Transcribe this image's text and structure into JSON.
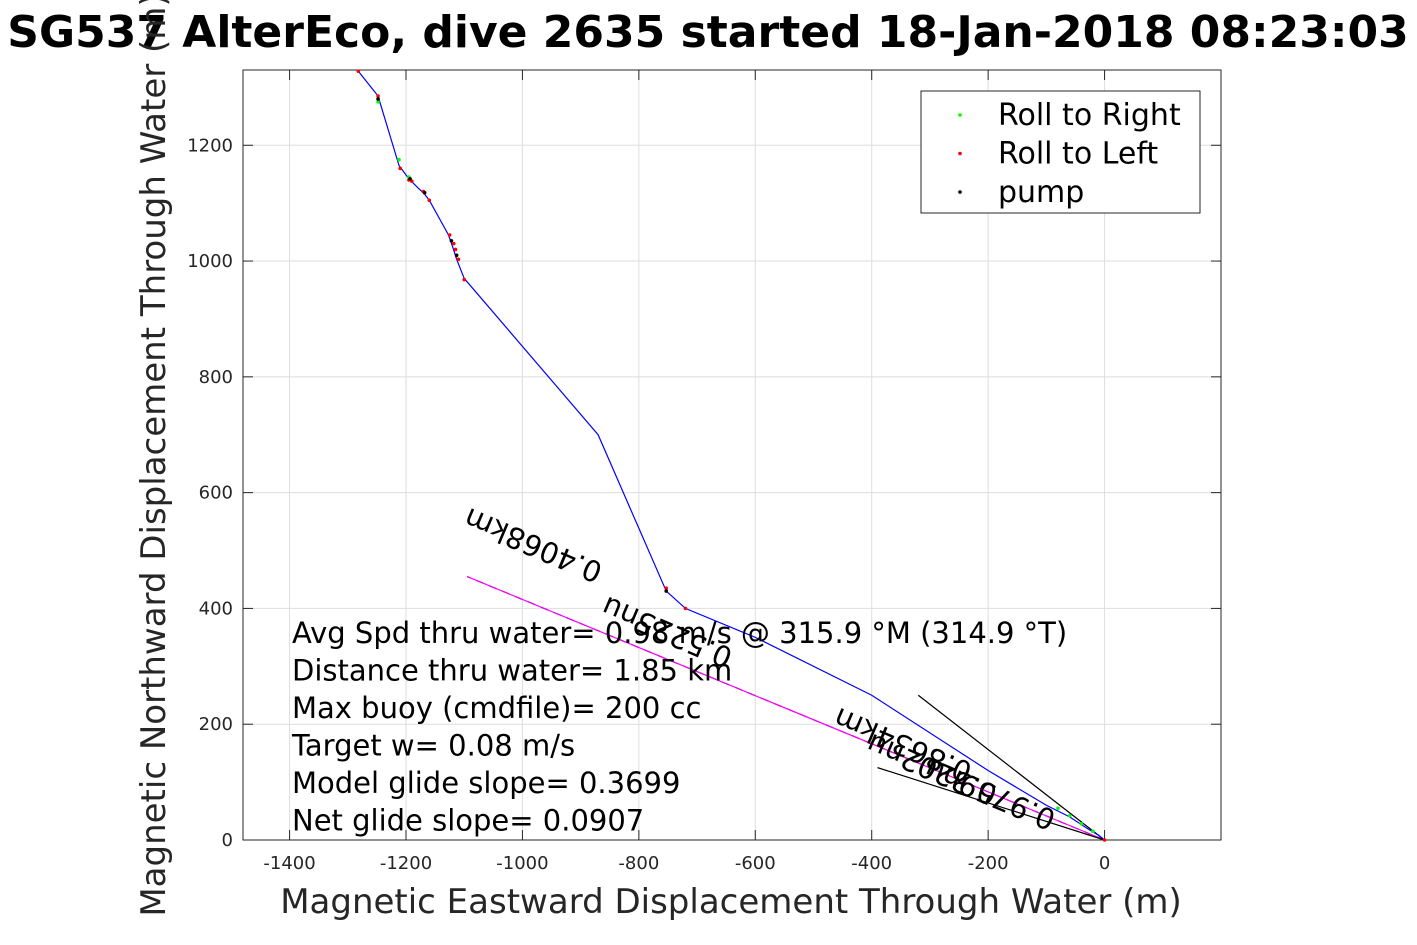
{
  "chart_data": {
    "type": "line",
    "title": "SG537 AlterEco, dive 2635 started 18-Jan-2018 08:23:03",
    "xlabel": "Magnetic Eastward Displacement Through Water (m)",
    "ylabel": "Magnetic Northward Displacement Through Water (m)",
    "xlim": [
      -1480,
      200
    ],
    "ylim": [
      0,
      1330
    ],
    "xticks": [
      -1400,
      -1200,
      -1000,
      -800,
      -600,
      -400,
      -200,
      0
    ],
    "yticks": [
      0,
      200,
      400,
      600,
      800,
      1000,
      1200
    ],
    "grid": true,
    "legend_position": "top-right",
    "legend": [
      {
        "label": "Roll to Right",
        "color": "#00ff00"
      },
      {
        "label": "Roll to Left",
        "color": "#ff0000"
      },
      {
        "label": "pump",
        "color": "#000000"
      }
    ],
    "track": {
      "color": "#0000ff",
      "x": [
        0,
        -10,
        -30,
        -60,
        -100,
        -200,
        -400,
        -600,
        -720,
        -753,
        -870,
        -1100,
        -1113,
        -1120,
        -1127,
        -1160,
        -1170,
        -1178,
        -1195,
        -1212,
        -1245,
        -1248,
        -1282
      ],
      "y": [
        0,
        8,
        20,
        40,
        60,
        120,
        250,
        350,
        400,
        430,
        700,
        970,
        1003,
        1025,
        1045,
        1105,
        1118,
        1125,
        1142,
        1165,
        1275,
        1285,
        1328
      ]
    },
    "roll_right_points": {
      "x": [
        -1212,
        -1248,
        -1195,
        -20,
        -40,
        -60,
        -80
      ],
      "y": [
        1175,
        1275,
        1145,
        15,
        28,
        42,
        55
      ]
    },
    "roll_left_points": {
      "x": [
        -1282,
        -1248,
        -1210,
        -1195,
        -1190,
        -1170,
        -1160,
        -1125,
        -1118,
        -1115,
        -1110,
        -1100,
        -753,
        -720,
        0
      ],
      "y": [
        1328,
        1285,
        1160,
        1140,
        1138,
        1120,
        1105,
        1045,
        1030,
        1020,
        1003,
        968,
        435,
        400,
        0
      ]
    },
    "pump_points": {
      "x": [
        -1248,
        -1193,
        -1168,
        -1122,
        -1113,
        -753
      ],
      "y": [
        1280,
        1142,
        1118,
        1035,
        1010,
        430
      ]
    },
    "reference_lines": [
      {
        "x": [
          0,
          -1095
        ],
        "y": [
          0,
          455
        ],
        "style": "dashed",
        "color": "#000000"
      },
      {
        "x": [
          0,
          -1095
        ],
        "y": [
          0,
          455
        ],
        "style": "solid",
        "color": "#ff00ff"
      },
      {
        "x": [
          0,
          -320
        ],
        "y": [
          0,
          250
        ],
        "style": "solid",
        "color": "#000000"
      },
      {
        "x": [
          0,
          -390
        ],
        "y": [
          0,
          125
        ],
        "style": "solid",
        "color": "#000000"
      }
    ],
    "line_annotations": [
      {
        "text": "0.4068km",
        "x": -975,
        "y": 525,
        "angle": 23
      },
      {
        "text": "0.5225nu",
        "x": -745,
        "y": 375,
        "angle": 23
      },
      {
        "text": "0.8634km",
        "x": -340,
        "y": 180,
        "angle": 23
      },
      {
        "text": "0.9759nu",
        "x": -190,
        "y": 95,
        "angle": 23
      },
      {
        "text": "0.3202nu",
        "x": -290,
        "y": 138,
        "angle": 23
      }
    ],
    "stats": [
      "Avg Spd thru water=  0.98 m/s @ 315.9 °M (314.9 °T)",
      "Distance thru water=  1.85 km",
      "Max buoy (cmdfile)= 200 cc",
      "Target w= 0.08 m/s",
      "Model glide slope= 0.3699",
      "Net glide slope= 0.0907"
    ]
  }
}
